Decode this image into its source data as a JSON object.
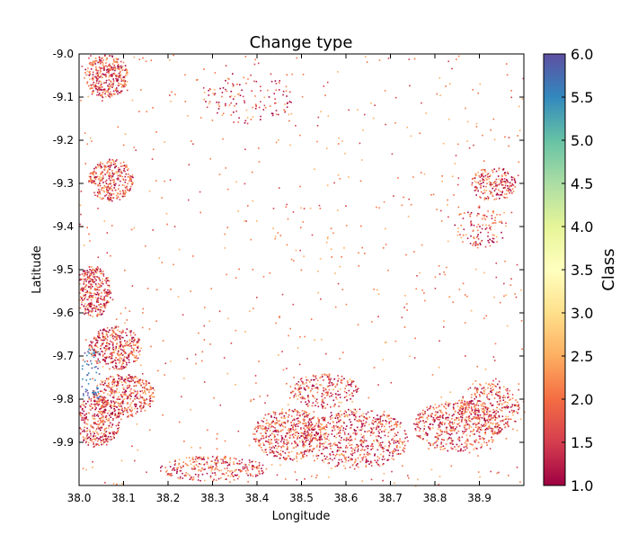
{
  "chart_data": {
    "type": "heatmap",
    "title": "Change type",
    "xlabel": "Longitude",
    "ylabel": "Latitude",
    "xlim": [
      38.0,
      39.0
    ],
    "ylim": [
      -10.0,
      -9.0
    ],
    "x_ticks": [
      "38.0",
      "38.1",
      "38.2",
      "38.3",
      "38.4",
      "38.5",
      "38.6",
      "38.7",
      "38.8",
      "38.9"
    ],
    "x_tick_values": [
      38.0,
      38.1,
      38.2,
      38.3,
      38.4,
      38.5,
      38.6,
      38.7,
      38.8,
      38.9
    ],
    "y_ticks": [
      "-9.0",
      "-9.1",
      "-9.2",
      "-9.3",
      "-9.4",
      "-9.5",
      "-9.6",
      "-9.7",
      "-9.8",
      "-9.9"
    ],
    "y_tick_values": [
      -9.0,
      -9.1,
      -9.2,
      -9.3,
      -9.4,
      -9.5,
      -9.6,
      -9.7,
      -9.8,
      -9.9
    ],
    "colorbar": {
      "label": "Class",
      "range": [
        1.0,
        6.0
      ],
      "ticks": [
        "1.0",
        "1.5",
        "2.0",
        "2.5",
        "3.0",
        "3.5",
        "4.0",
        "4.5",
        "5.0",
        "5.5",
        "6.0"
      ],
      "tick_values": [
        1.0,
        1.5,
        2.0,
        2.5,
        3.0,
        3.5,
        4.0,
        4.5,
        5.0,
        5.5,
        6.0
      ],
      "colormap": "Spectral",
      "stops": [
        "#9e0142",
        "#d53e4f",
        "#f46d43",
        "#fdae61",
        "#fee08b",
        "#ffffbf",
        "#e6f598",
        "#abdda4",
        "#66c2a5",
        "#3288bd",
        "#5e4fa2"
      ]
    },
    "grid": false
  }
}
